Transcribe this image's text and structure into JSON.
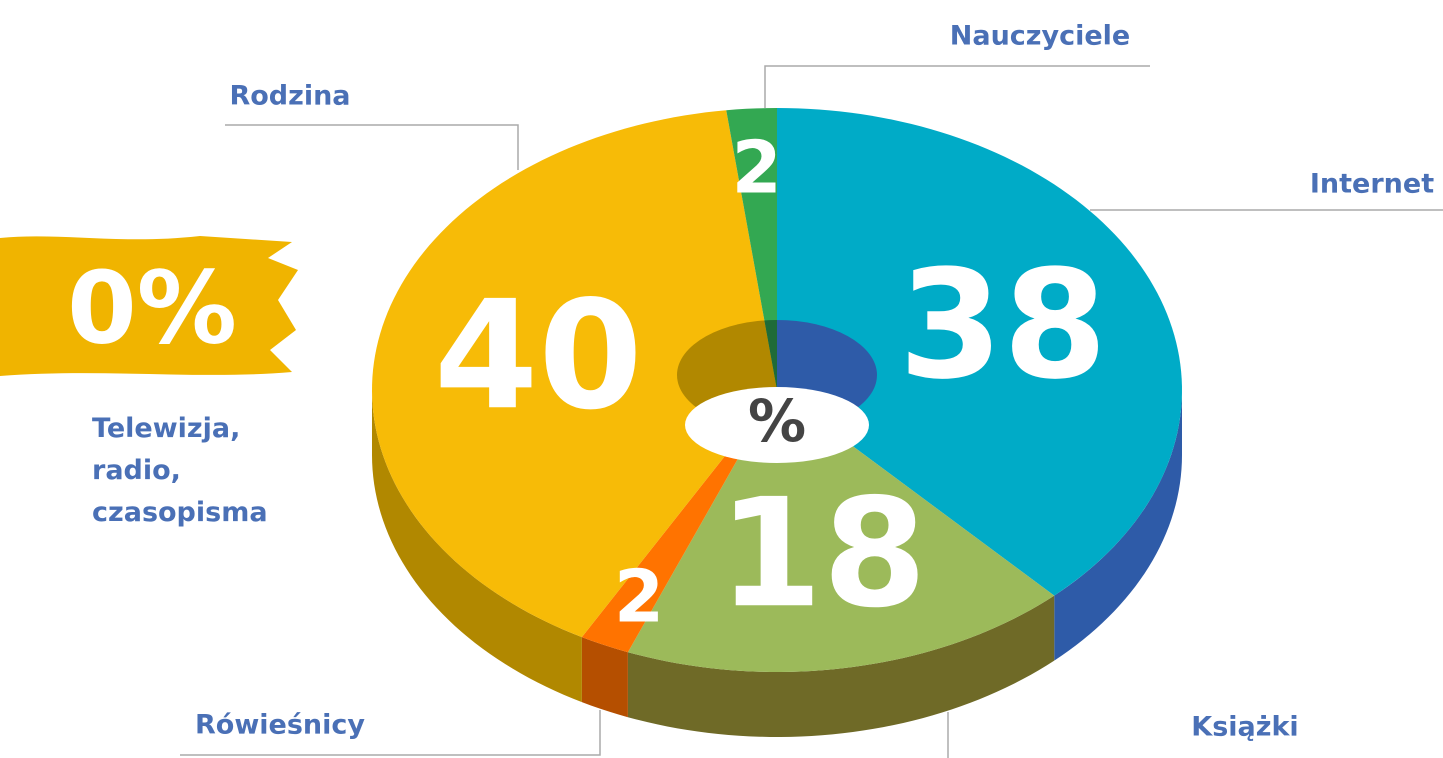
{
  "chart_data": {
    "type": "pie3d",
    "categories": [
      "Internet",
      "Książki",
      "Rówieśnicy",
      "Rodzina",
      "Nauczyciele",
      "Telewizja, radio, czasopisma"
    ],
    "values": [
      38,
      18,
      2,
      40,
      2,
      0
    ],
    "value_labels": [
      "38",
      "18",
      "2",
      "40",
      "2",
      "0%"
    ],
    "colors": [
      "#00abc7",
      "#9cba5a",
      "#ff7300",
      "#f7bb07",
      "#33a852",
      "#f0b400"
    ],
    "side_colors": [
      "#2e5ba8",
      "#6f6a27",
      "#b54f00",
      "#b18800",
      "#1f6b38",
      "#b18800"
    ],
    "center_label": "%"
  }
}
